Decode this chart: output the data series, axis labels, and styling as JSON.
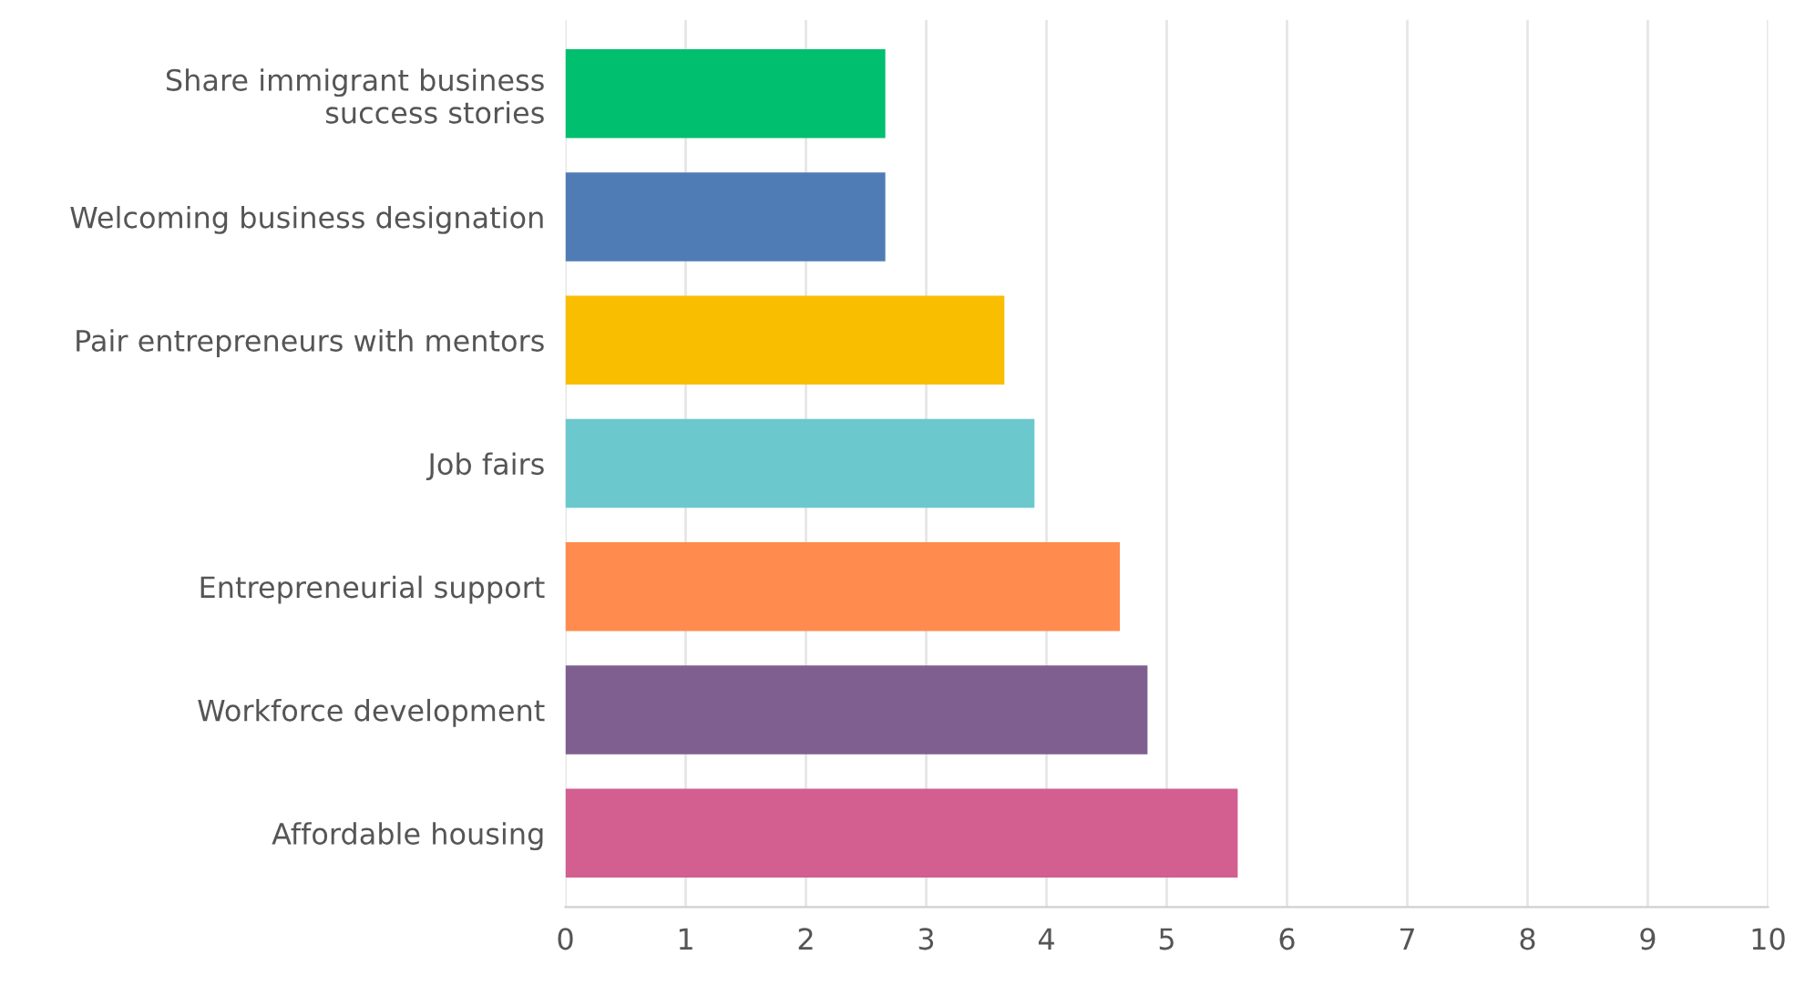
{
  "chart_data": {
    "type": "bar",
    "orientation": "horizontal",
    "categories": [
      "Share immigrant business\nsuccess stories",
      "Welcoming business designation",
      "Pair entrepreneurs with mentors",
      "Job fairs",
      "Entrepreneurial support",
      "Workforce development",
      "Affordable housing"
    ],
    "values": [
      2.66,
      2.66,
      3.65,
      3.9,
      4.61,
      4.84,
      5.59
    ],
    "colors": [
      "#00bf6f",
      "#507cb6",
      "#f9be00",
      "#6bc8cd",
      "#ff8b4f",
      "#7f5f90",
      "#d25f90"
    ],
    "xlim": [
      0,
      10
    ],
    "xticks": [
      0,
      1,
      2,
      3,
      4,
      5,
      6,
      7,
      8,
      9,
      10
    ],
    "grid": "x"
  }
}
